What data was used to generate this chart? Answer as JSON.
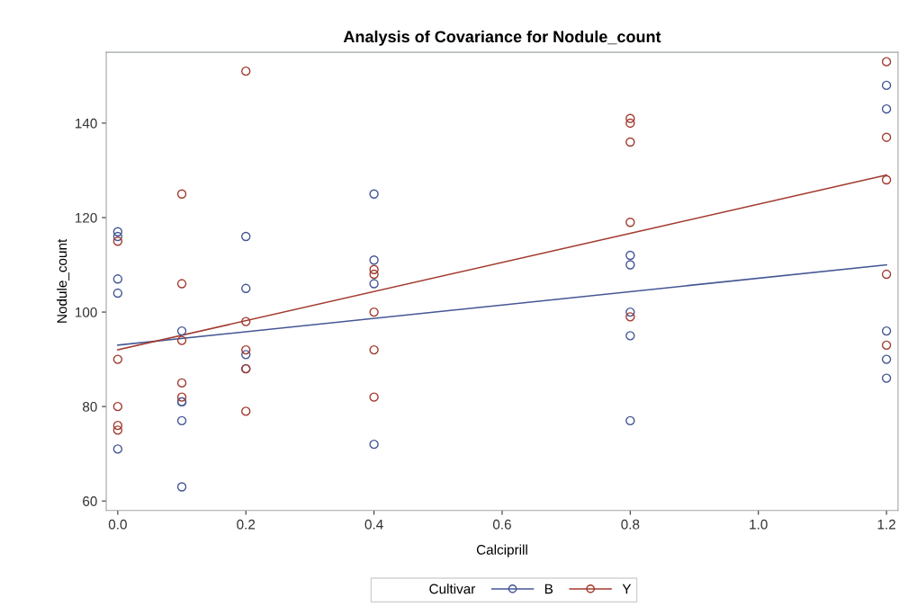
{
  "chart_data": {
    "type": "scatter",
    "title": "Analysis of Covariance for Nodule_count",
    "xlabel": "Calciprill",
    "ylabel": "Nodule_count",
    "legend_title": "Cultivar",
    "series": [
      {
        "name": "B",
        "marker": "circle",
        "color": "#445694",
        "x": [
          0,
          0,
          0,
          0,
          0,
          0.1,
          0.1,
          0.1,
          0.1,
          0.1,
          0.2,
          0.2,
          0.2,
          0.2,
          0.4,
          0.4,
          0.4,
          0.4,
          0.8,
          0.8,
          0.8,
          0.8,
          0.8,
          1.2,
          1.2,
          1.2,
          1.2,
          1.2
        ],
        "values": [
          117,
          116,
          107,
          104,
          71,
          96,
          81,
          81,
          77,
          63,
          116,
          105,
          91,
          88,
          125,
          111,
          106,
          72,
          112,
          110,
          100,
          95,
          77,
          148,
          143,
          96,
          90,
          86
        ]
      },
      {
        "name": "Y",
        "marker": "circle",
        "color": "#a23a2e",
        "x": [
          0,
          0,
          0,
          0,
          0,
          0.1,
          0.1,
          0.1,
          0.1,
          0.1,
          0.2,
          0.2,
          0.2,
          0.2,
          0.2,
          0.4,
          0.4,
          0.4,
          0.4,
          0.4,
          0.8,
          0.8,
          0.8,
          0.8,
          0.8,
          1.2,
          1.2,
          1.2,
          1.2,
          1.2
        ],
        "values": [
          115,
          90,
          80,
          76,
          75,
          125,
          106,
          94,
          85,
          82,
          151,
          98,
          92,
          88,
          79,
          109,
          108,
          100,
          92,
          82,
          141,
          140,
          136,
          119,
          99,
          153,
          137,
          128,
          108,
          93
        ]
      },
      {
        "type": "line",
        "marker": "none",
        "color": "#445694",
        "x": [
          0,
          1.2
        ],
        "values": [
          93,
          110
        ]
      },
      {
        "type": "line",
        "marker": "none",
        "color": "#a23a2e",
        "x": [
          0,
          1.2
        ],
        "values": [
          92,
          129
        ]
      }
    ],
    "xlim": [
      -0.018,
      1.218
    ],
    "ylim": [
      58,
      155
    ],
    "xticks": [
      {
        "value": 0,
        "label": "0.0"
      },
      {
        "value": 0.2,
        "label": "0.2"
      },
      {
        "value": 0.4,
        "label": "0.4"
      },
      {
        "value": 0.6,
        "label": "0.6"
      },
      {
        "value": 0.8,
        "label": "0.8"
      },
      {
        "value": 1.0,
        "label": "1.0"
      },
      {
        "value": 1.2,
        "label": "1.2"
      }
    ],
    "yticks": [
      60,
      80,
      100,
      120,
      140
    ],
    "legend": "bottom",
    "grid": false
  }
}
